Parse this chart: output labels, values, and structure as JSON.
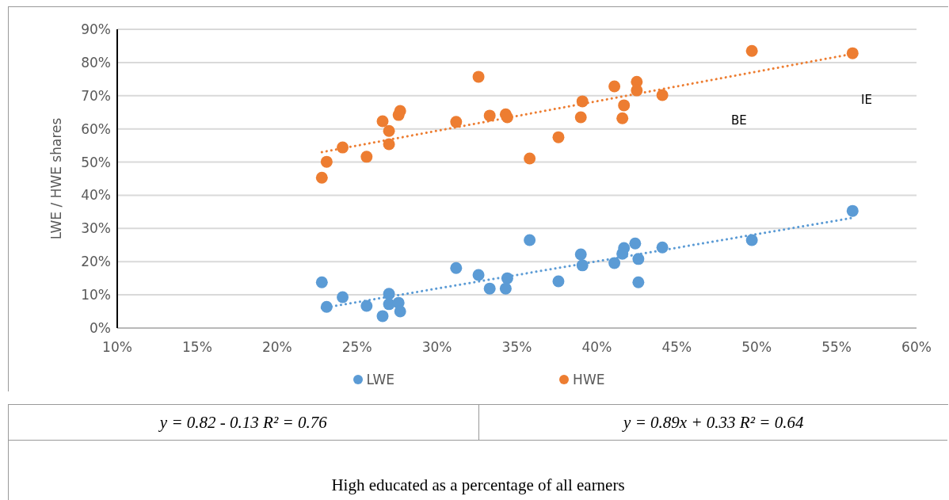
{
  "chart_data": {
    "type": "scatter",
    "ylabel": "LWE / HWE shares",
    "xlim": [
      10,
      60
    ],
    "xticks": [
      {
        "value": 10,
        "label": "10%"
      },
      {
        "value": 15,
        "label": "15%"
      },
      {
        "value": 20,
        "label": "20%"
      },
      {
        "value": 25,
        "label": "25%"
      },
      {
        "value": 30,
        "label": "30%"
      },
      {
        "value": 35,
        "label": "35%"
      },
      {
        "value": 40,
        "label": "40%"
      },
      {
        "value": 45,
        "label": "45%"
      },
      {
        "value": 50,
        "label": "50%"
      },
      {
        "value": 55,
        "label": "55%"
      },
      {
        "value": 60,
        "label": "60%"
      }
    ],
    "ylim": [
      0,
      90
    ],
    "yticks": [
      {
        "value": 0,
        "label": "0%"
      },
      {
        "value": 10,
        "label": "10%"
      },
      {
        "value": 20,
        "label": "20%"
      },
      {
        "value": 30,
        "label": "30%"
      },
      {
        "value": 40,
        "label": "40%"
      },
      {
        "value": 50,
        "label": "50%"
      },
      {
        "value": 60,
        "label": "60%"
      },
      {
        "value": 70,
        "label": "70%"
      },
      {
        "value": 80,
        "label": "80%"
      },
      {
        "value": 90,
        "label": "90%"
      }
    ],
    "grid": "y",
    "legend": "bottom",
    "marker": "circle",
    "series": [
      {
        "name": "LWE",
        "color": "#5b9bd5",
        "x": [
          22.8,
          23.1,
          24.1,
          25.6,
          26.6,
          27.0,
          27.0,
          27.6,
          27.7,
          31.2,
          32.6,
          33.3,
          34.4,
          34.3,
          35.8,
          37.6,
          39.0,
          39.1,
          41.1,
          41.7,
          41.6,
          42.4,
          42.6,
          42.6,
          44.1,
          49.7,
          56.0
        ],
        "values": [
          13.8,
          6.4,
          9.3,
          6.7,
          3.6,
          10.3,
          7.2,
          7.6,
          5.0,
          18.1,
          16.0,
          11.9,
          15.0,
          11.9,
          26.5,
          14.1,
          22.2,
          18.9,
          19.6,
          24.1,
          22.4,
          25.5,
          20.8,
          13.8,
          24.3,
          26.5,
          35.3
        ]
      },
      {
        "name": "HWE",
        "color": "#ed7d31",
        "x": [
          22.8,
          23.1,
          24.1,
          25.6,
          26.6,
          27.0,
          27.0,
          27.6,
          27.7,
          31.2,
          32.6,
          33.3,
          34.3,
          34.4,
          35.8,
          37.6,
          39.1,
          39.0,
          41.1,
          41.7,
          41.6,
          42.5,
          42.5,
          42.6,
          44.1,
          49.7,
          56.0
        ],
        "values": [
          45.3,
          50.1,
          54.4,
          51.6,
          62.3,
          59.4,
          55.4,
          64.2,
          65.4,
          62.1,
          75.7,
          64.0,
          64.4,
          63.5,
          51.1,
          57.5,
          68.3,
          63.5,
          72.8,
          67.1,
          63.2,
          74.2,
          71.6,
          null,
          70.2,
          83.5,
          82.8
        ]
      },
      {
        "type": "line",
        "color": "#5b9bd5",
        "line_style": "dotted",
        "marker": "none",
        "x": [
          22.8,
          56.0
        ],
        "values": [
          6.0,
          33.2
        ]
      },
      {
        "type": "line",
        "color": "#ed7d31",
        "line_style": "dotted",
        "marker": "none",
        "x": [
          22.8,
          56.0
        ],
        "values": [
          53.0,
          82.6
        ]
      }
    ],
    "annotations": [
      "BE",
      "IE",
      "y = 0.82 - 0.13 R² = 0.76",
      "y = 0.89x + 0.33 R² = 0.64",
      "High educated as a percentage of all earners"
    ]
  }
}
